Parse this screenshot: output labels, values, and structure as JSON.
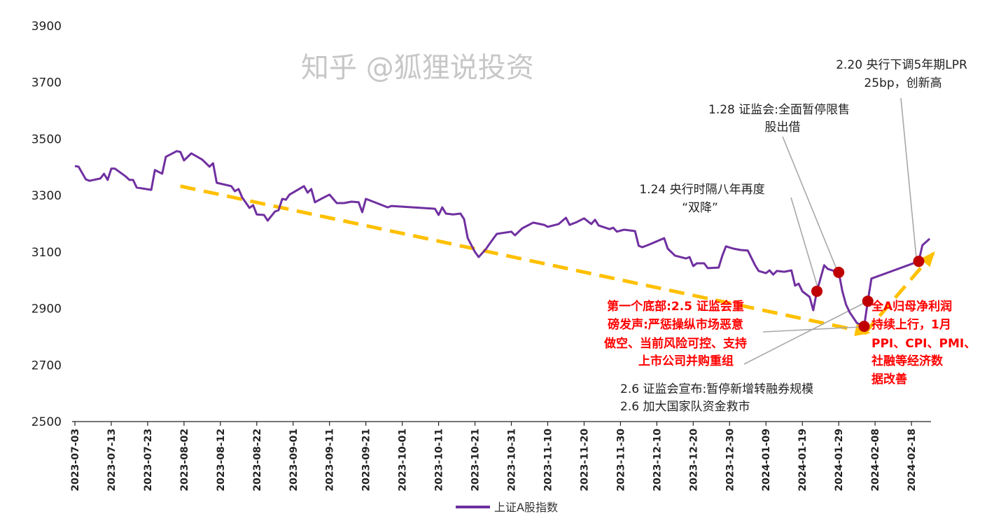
{
  "chart_data": {
    "type": "line",
    "title": "",
    "xlabel": "",
    "ylabel": "",
    "ylim": [
      2500,
      3900
    ],
    "yticks": [
      "3900",
      "3700",
      "3500",
      "3300",
      "3100",
      "2900",
      "2700",
      "2500"
    ],
    "ytick_values": [
      3900,
      3700,
      3500,
      3300,
      3100,
      2900,
      2700,
      2500
    ],
    "start_date": "2023-07-03",
    "x_unit": "days since start_date",
    "xlim_days": [
      0,
      236
    ],
    "xticks": [
      "2023-07-03",
      "2023-07-13",
      "2023-07-23",
      "2023-08-02",
      "2023-08-12",
      "2023-08-22",
      "2023-09-01",
      "2023-09-11",
      "2023-09-21",
      "2023-10-01",
      "2023-10-11",
      "2023-10-21",
      "2023-10-31",
      "2023-11-10",
      "2023-11-20",
      "2023-11-30",
      "2023-12-10",
      "2023-12-20",
      "2023-12-30",
      "2024-01-09",
      "2024-01-19",
      "2024-01-29",
      "2024-02-08",
      "2024-02-18"
    ],
    "xtick_step_days": 10,
    "grid": false,
    "legend_position": "bottom",
    "series": [
      {
        "name": "上证A股指数",
        "color": "#7030A0",
        "points": [
          [
            0,
            3404
          ],
          [
            1,
            3402
          ],
          [
            3,
            3357
          ],
          [
            4,
            3352
          ],
          [
            7,
            3360
          ],
          [
            8,
            3377
          ],
          [
            9,
            3355
          ],
          [
            10,
            3395
          ],
          [
            11,
            3395
          ],
          [
            14,
            3367
          ],
          [
            15,
            3355
          ],
          [
            16,
            3355
          ],
          [
            17,
            3328
          ],
          [
            21,
            3320
          ],
          [
            22,
            3390
          ],
          [
            24,
            3377
          ],
          [
            25,
            3437
          ],
          [
            28,
            3457
          ],
          [
            29,
            3454
          ],
          [
            30,
            3424
          ],
          [
            32,
            3449
          ],
          [
            35,
            3427
          ],
          [
            37,
            3402
          ],
          [
            38,
            3414
          ],
          [
            39,
            3345
          ],
          [
            43,
            3333
          ],
          [
            44,
            3315
          ],
          [
            45,
            3323
          ],
          [
            46,
            3293
          ],
          [
            48,
            3256
          ],
          [
            49,
            3266
          ],
          [
            50,
            3233
          ],
          [
            52,
            3231
          ],
          [
            53,
            3211
          ],
          [
            55,
            3243
          ],
          [
            56,
            3248
          ],
          [
            57,
            3288
          ],
          [
            58,
            3285
          ],
          [
            59,
            3303
          ],
          [
            63,
            3333
          ],
          [
            64,
            3310
          ],
          [
            65,
            3323
          ],
          [
            66,
            3276
          ],
          [
            68,
            3290
          ],
          [
            70,
            3303
          ],
          [
            72,
            3273
          ],
          [
            74,
            3273
          ],
          [
            76,
            3278
          ],
          [
            78,
            3276
          ],
          [
            79,
            3241
          ],
          [
            80,
            3288
          ],
          [
            83,
            3273
          ],
          [
            86,
            3258
          ],
          [
            87,
            3263
          ],
          [
            99,
            3253
          ],
          [
            100,
            3231
          ],
          [
            101,
            3258
          ],
          [
            102,
            3236
          ],
          [
            104,
            3233
          ],
          [
            106,
            3236
          ],
          [
            107,
            3216
          ],
          [
            108,
            3149
          ],
          [
            110,
            3100
          ],
          [
            111,
            3082
          ],
          [
            113,
            3110
          ],
          [
            114,
            3129
          ],
          [
            116,
            3164
          ],
          [
            120,
            3172
          ],
          [
            121,
            3159
          ],
          [
            123,
            3184
          ],
          [
            126,
            3204
          ],
          [
            129,
            3196
          ],
          [
            130,
            3189
          ],
          [
            133,
            3199
          ],
          [
            135,
            3221
          ],
          [
            136,
            3196
          ],
          [
            138,
            3206
          ],
          [
            140,
            3219
          ],
          [
            142,
            3199
          ],
          [
            143,
            3214
          ],
          [
            144,
            3194
          ],
          [
            147,
            3181
          ],
          [
            148,
            3186
          ],
          [
            149,
            3172
          ],
          [
            151,
            3179
          ],
          [
            154,
            3174
          ],
          [
            155,
            3122
          ],
          [
            156,
            3117
          ],
          [
            158,
            3127
          ],
          [
            162,
            3149
          ],
          [
            163,
            3112
          ],
          [
            165,
            3087
          ],
          [
            168,
            3077
          ],
          [
            169,
            3082
          ],
          [
            170,
            3050
          ],
          [
            171,
            3060
          ],
          [
            173,
            3060
          ],
          [
            174,
            3043
          ],
          [
            177,
            3045
          ],
          [
            178,
            3087
          ],
          [
            179,
            3120
          ],
          [
            181,
            3112
          ],
          [
            183,
            3107
          ],
          [
            185,
            3105
          ],
          [
            187,
            3053
          ],
          [
            188,
            3033
          ],
          [
            190,
            3025
          ],
          [
            191,
            3035
          ],
          [
            192,
            3020
          ],
          [
            193,
            3033
          ],
          [
            195,
            3030
          ],
          [
            197,
            3035
          ],
          [
            198,
            2981
          ],
          [
            199,
            2988
          ],
          [
            200,
            2961
          ],
          [
            202,
            2941
          ],
          [
            203,
            2894
          ],
          [
            204,
            2961
          ],
          [
            206,
            3053
          ],
          [
            207,
            3040
          ],
          [
            210,
            3028
          ],
          [
            211,
            2961
          ],
          [
            212,
            2914
          ],
          [
            213,
            2887
          ],
          [
            215,
            2849
          ],
          [
            217,
            2837
          ],
          [
            218,
            2926
          ],
          [
            219,
            3006
          ],
          [
            232,
            3067
          ],
          [
            233,
            3124
          ],
          [
            235,
            3147
          ]
        ]
      }
    ],
    "markers": [
      {
        "day": 204,
        "value": 2961,
        "color": "#C00000"
      },
      {
        "day": 210,
        "value": 3028,
        "color": "#C00000"
      },
      {
        "day": 217,
        "value": 2837,
        "color": "#C00000"
      },
      {
        "day": 218,
        "value": 2926,
        "color": "#C00000"
      },
      {
        "day": 232,
        "value": 3067,
        "color": "#C00000"
      }
    ],
    "trend_arrows": [
      {
        "from": [
          29,
          3333
        ],
        "to": [
          218,
          2815
        ],
        "color": "#FFC000"
      },
      {
        "from": [
          217,
          2810
        ],
        "to": [
          236,
          3095
        ],
        "color": "#FFC000"
      }
    ],
    "annotations": {
      "lpr": [
        "2.20 央行下调5年期LPR",
        "25bp，创新高"
      ],
      "csrc_128": [
        "1.28 证监会:全面暂停限售",
        "股出借"
      ],
      "pboc_124": [
        "1.24 央行时隔八年再度",
        "“双降”"
      ],
      "bottom_red": [
        "第一个底部:2.5 证监会重",
        "磅发声:严惩操纵市场恶意",
        "做空、当前风险可控、支持",
        "上市公司并购重组"
      ],
      "profit_red": [
        "全A归母净利润",
        "持续上行，1月",
        "PPI、CPI、PMI、",
        "社融等经济数",
        "据改善"
      ],
      "csrc_26": [
        "2.6 证监会宣布:暂停新增转融券规模",
        "2.6 加大国家队资金救市"
      ]
    }
  },
  "watermark": "知乎 @狐狸说投资"
}
